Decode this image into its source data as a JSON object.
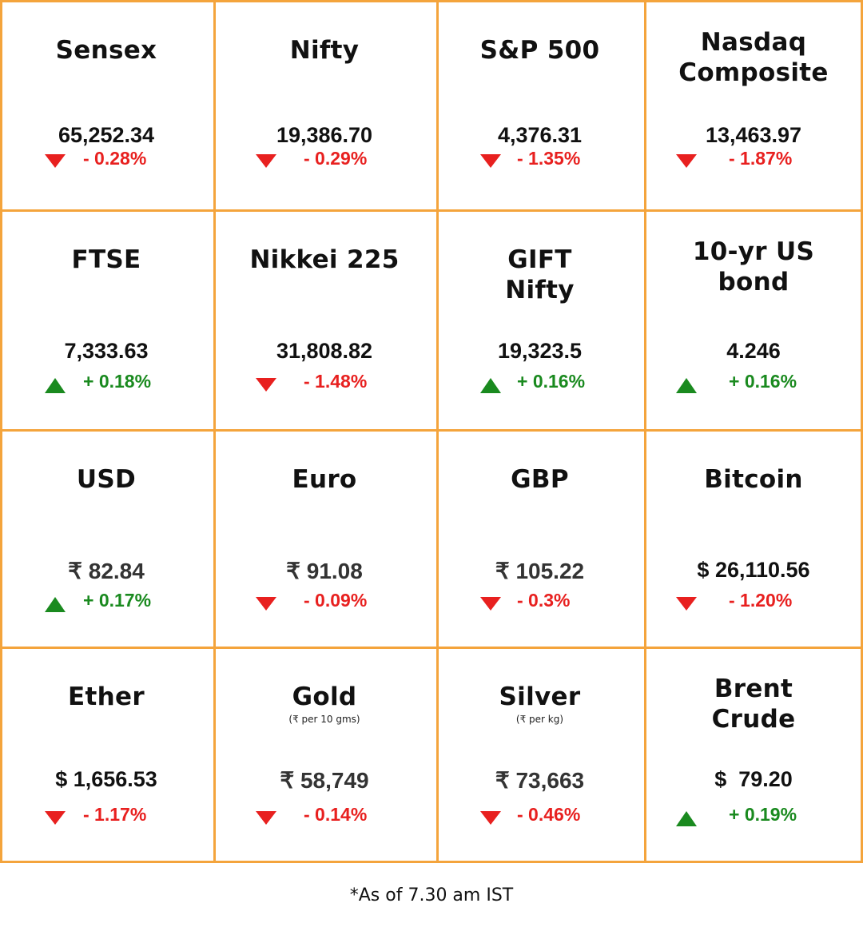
{
  "colors": {
    "border": "#f4a43c",
    "up": "#1a8a1f",
    "down": "#e8201f"
  },
  "cells": [
    {
      "name": "Sensex",
      "sub": "",
      "value": "65,252.34",
      "direction": "down",
      "change": "- 0.28%"
    },
    {
      "name": "Nifty",
      "sub": "",
      "value": "19,386.70",
      "direction": "down",
      "change": "- 0.29%"
    },
    {
      "name": "S&P 500",
      "sub": "",
      "value": "4,376.31",
      "direction": "down",
      "change": "- 1.35%"
    },
    {
      "name": "Nasdaq\nComposite",
      "sub": "",
      "value": "13,463.97",
      "direction": "down",
      "change": "- 1.87%"
    },
    {
      "name": "FTSE",
      "sub": "",
      "value": "7,333.63",
      "direction": "up",
      "change": "+ 0.18%"
    },
    {
      "name": "Nikkei 225",
      "sub": "",
      "value": "31,808.82",
      "direction": "down",
      "change": "- 1.48%"
    },
    {
      "name": "GIFT\nNifty",
      "sub": "",
      "value": "19,323.5",
      "direction": "up",
      "change": "+ 0.16%"
    },
    {
      "name": "10-yr US\nbond",
      "sub": "",
      "value": "4.246",
      "direction": "up",
      "change": "+ 0.16%"
    },
    {
      "name": "USD",
      "sub": "",
      "value": "₹ 82.84",
      "direction": "up",
      "change": "+ 0.17%"
    },
    {
      "name": "Euro",
      "sub": "",
      "value": "₹ 91.08",
      "direction": "down",
      "change": "- 0.09%"
    },
    {
      "name": "GBP",
      "sub": "",
      "value": "₹ 105.22",
      "direction": "down",
      "change": "- 0.3%"
    },
    {
      "name": "Bitcoin",
      "sub": "",
      "value": "$ 26,110.56",
      "direction": "down",
      "change": "- 1.20%"
    },
    {
      "name": "Ether",
      "sub": "",
      "value": "$ 1,656.53",
      "direction": "down",
      "change": "- 1.17%"
    },
    {
      "name": "Gold",
      "sub": "(₹ per 10 gms)",
      "value": "₹ 58,749",
      "direction": "down",
      "change": "- 0.14%"
    },
    {
      "name": "Silver",
      "sub": "(₹ per kg)",
      "value": "₹ 73,663",
      "direction": "down",
      "change": "- 0.46%"
    },
    {
      "name": "Brent\nCrude",
      "sub": "",
      "value": "$  79.20",
      "direction": "up",
      "change": "+ 0.19%"
    }
  ],
  "footer": "*As of 7.30 am IST"
}
